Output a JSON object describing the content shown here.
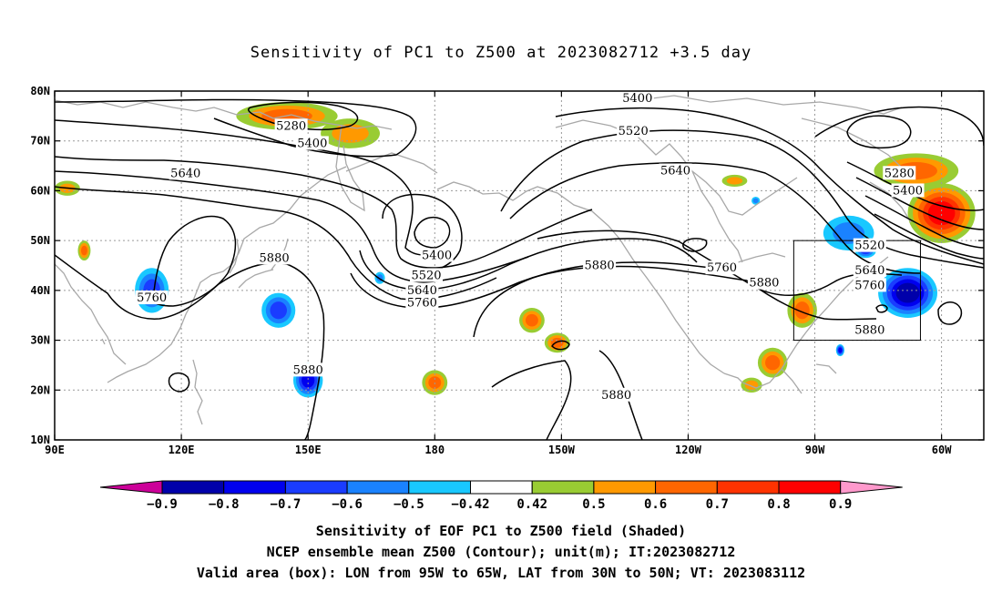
{
  "title": "Sensitivity of PC1 to Z500 at 2023082712 +3.5 day",
  "captions": [
    "Sensitivity of EOF PC1 to Z500 field (Shaded)",
    "NCEP ensemble mean Z500 (Contour); unit(m); IT:2023082712",
    "Valid area (box): LON from 95W to 65W, LAT from 30N to 50N; VT: 2023083112"
  ],
  "chart_data": {
    "type": "heatmap",
    "projection": "cylindrical equidistant",
    "lon_range": [
      90,
      310
    ],
    "lat_range": [
      10,
      80
    ],
    "x_ticks": [
      {
        "lon": 90,
        "label": "90E"
      },
      {
        "lon": 120,
        "label": "120E"
      },
      {
        "lon": 150,
        "label": "150E"
      },
      {
        "lon": 180,
        "label": "180"
      },
      {
        "lon": 210,
        "label": "150W"
      },
      {
        "lon": 240,
        "label": "120W"
      },
      {
        "lon": 270,
        "label": "90W"
      },
      {
        "lon": 300,
        "label": "60W"
      }
    ],
    "y_ticks": [
      {
        "lat": 10,
        "label": "10N"
      },
      {
        "lat": 20,
        "label": "20N"
      },
      {
        "lat": 30,
        "label": "30N"
      },
      {
        "lat": 40,
        "label": "40N"
      },
      {
        "lat": 50,
        "label": "50N"
      },
      {
        "lat": 60,
        "label": "60N"
      },
      {
        "lat": 70,
        "label": "70N"
      },
      {
        "lat": 80,
        "label": "80N"
      }
    ],
    "grid": true,
    "valid_box": {
      "lon_min": 265,
      "lon_max": 295,
      "lat_min": 30,
      "lat_max": 50
    },
    "colorbar": {
      "labels": [
        "-0.9",
        "-0.8",
        "-0.7",
        "-0.6",
        "-0.5",
        "-0.42",
        "0.42",
        "0.5",
        "0.6",
        "0.7",
        "0.8",
        "0.9"
      ],
      "colors": [
        "#cc0099",
        "#0000aa",
        "#0000ee",
        "#1a3cff",
        "#1a82ff",
        "#19c8ff",
        "#ffffff",
        "#99cc33",
        "#ff9900",
        "#ff6600",
        "#ff3300",
        "#ff0000",
        "#ff99cc"
      ]
    },
    "contour_labels": [
      {
        "text": "5280",
        "lon": 146,
        "lat": 73
      },
      {
        "text": "5400",
        "lon": 151,
        "lat": 69.5
      },
      {
        "text": "5640",
        "lon": 121,
        "lat": 63.5
      },
      {
        "text": "5400",
        "lon": 180.5,
        "lat": 47
      },
      {
        "text": "5520",
        "lon": 178,
        "lat": 43
      },
      {
        "text": "5640",
        "lon": 177,
        "lat": 40
      },
      {
        "text": "5760",
        "lon": 177,
        "lat": 37.5
      },
      {
        "text": "5880",
        "lon": 142,
        "lat": 46.5
      },
      {
        "text": "5760",
        "lon": 113,
        "lat": 38.5
      },
      {
        "text": "5880",
        "lon": 150,
        "lat": 24
      },
      {
        "text": "5400",
        "lon": 228,
        "lat": 78.5
      },
      {
        "text": "5520",
        "lon": 227,
        "lat": 72
      },
      {
        "text": "5640",
        "lon": 237,
        "lat": 64
      },
      {
        "text": "5880",
        "lon": 219,
        "lat": 45
      },
      {
        "text": "5760",
        "lon": 248,
        "lat": 44.5
      },
      {
        "text": "5880",
        "lon": 258,
        "lat": 41.5
      },
      {
        "text": "5880",
        "lon": 223,
        "lat": 19
      },
      {
        "text": "5280",
        "lon": 290,
        "lat": 63.5
      },
      {
        "text": "5400",
        "lon": 292,
        "lat": 60
      },
      {
        "text": "5520",
        "lon": 283,
        "lat": 49
      },
      {
        "text": "5640",
        "lon": 283,
        "lat": 44
      },
      {
        "text": "5760",
        "lon": 283,
        "lat": 41
      },
      {
        "text": "5880",
        "lon": 283,
        "lat": 32
      }
    ],
    "sensitivity_blobs": [
      {
        "lon": 145,
        "lat": 75,
        "rx": 12,
        "ry": 2.8,
        "value": 0.6
      },
      {
        "lon": 160,
        "lat": 71.5,
        "rx": 7,
        "ry": 3,
        "value": 0.5
      },
      {
        "lon": 93,
        "lat": 60.5,
        "rx": 3,
        "ry": 1.5,
        "value": 0.5
      },
      {
        "lon": 97,
        "lat": 48,
        "rx": 1.5,
        "ry": 2,
        "value": 0.6
      },
      {
        "lon": 113,
        "lat": 40,
        "rx": 4,
        "ry": 4.5,
        "value": -0.6
      },
      {
        "lon": 143,
        "lat": 36,
        "rx": 4,
        "ry": 3.5,
        "value": -0.6
      },
      {
        "lon": 150,
        "lat": 22,
        "rx": 3.5,
        "ry": 3.5,
        "value": -0.7
      },
      {
        "lon": 180,
        "lat": 21.5,
        "rx": 3,
        "ry": 2.5,
        "value": 0.6
      },
      {
        "lon": 167,
        "lat": 42.5,
        "rx": 1.2,
        "ry": 1.2,
        "value": -0.5
      },
      {
        "lon": 203,
        "lat": 34,
        "rx": 3,
        "ry": 2.5,
        "value": 0.6
      },
      {
        "lon": 209,
        "lat": 29.5,
        "rx": 3,
        "ry": 2,
        "value": 0.6
      },
      {
        "lon": 251,
        "lat": 62,
        "rx": 3,
        "ry": 1.2,
        "value": 0.5
      },
      {
        "lon": 256,
        "lat": 58,
        "rx": 1,
        "ry": 0.8,
        "value": -0.5
      },
      {
        "lon": 267,
        "lat": 36,
        "rx": 3.5,
        "ry": 3.5,
        "value": 0.6
      },
      {
        "lon": 260,
        "lat": 25.5,
        "rx": 3.5,
        "ry": 3,
        "value": 0.6
      },
      {
        "lon": 255,
        "lat": 21,
        "rx": 2.5,
        "ry": 1.5,
        "value": 0.5
      },
      {
        "lon": 278,
        "lat": 51.5,
        "rx": 6,
        "ry": 3.5,
        "value": -0.5
      },
      {
        "lon": 282,
        "lat": 48,
        "rx": 2.5,
        "ry": 1.5,
        "value": -0.6
      },
      {
        "lon": 292,
        "lat": 39.5,
        "rx": 7,
        "ry": 5,
        "value": -0.8
      },
      {
        "lon": 276,
        "lat": 28,
        "rx": 1,
        "ry": 1.2,
        "value": -0.7
      },
      {
        "lon": 294,
        "lat": 64,
        "rx": 10,
        "ry": 3.5,
        "value": 0.6
      },
      {
        "lon": 300,
        "lat": 55.5,
        "rx": 8,
        "ry": 6,
        "value": 0.8
      }
    ]
  }
}
